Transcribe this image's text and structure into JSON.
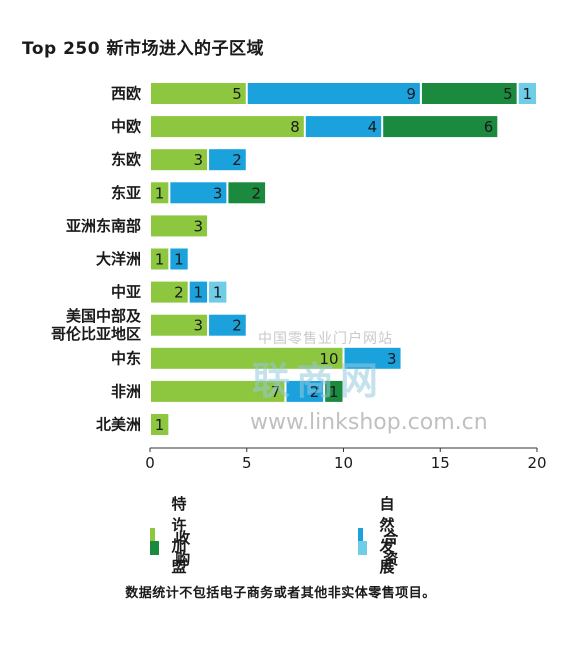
{
  "title": "Top 250  新市场进入的子区域",
  "footnote": "数据统计不包括电子商务或者其他非实体零售项目。",
  "watermark": {
    "site": "中国零售业门户网站",
    "brand": "联商网",
    "url": "www.linkshop.com.cn"
  },
  "colors": {
    "franchise": "#8dc63f",
    "organic": "#1ba2dc",
    "acquisition": "#1b8a3e",
    "jv": "#6fcde8"
  },
  "chart_data": {
    "type": "bar",
    "orientation": "horizontal",
    "stacked": true,
    "title": "Top 250  新市场进入的子区域",
    "categories": [
      "西欧",
      "中欧",
      "东欧",
      "东亚",
      "亚洲东南部",
      "大洋洲",
      "中亚",
      "美国中部及\n哥伦比亚地区",
      "中东",
      "非洲",
      "北美洲"
    ],
    "series": [
      {
        "name": "特许加盟",
        "color": "#8dc63f",
        "values": [
          5,
          8,
          3,
          1,
          3,
          1,
          2,
          3,
          10,
          7,
          1
        ]
      },
      {
        "name": "自然发展",
        "color": "#1ba2dc",
        "values": [
          9,
          4,
          2,
          3,
          0,
          1,
          1,
          2,
          3,
          2,
          0
        ]
      },
      {
        "name": "收购",
        "color": "#1b8a3e",
        "values": [
          5,
          6,
          0,
          2,
          0,
          0,
          0,
          0,
          0,
          1,
          0
        ]
      },
      {
        "name": "合资",
        "color": "#6fcde8",
        "values": [
          1,
          0,
          0,
          0,
          0,
          0,
          1,
          0,
          0,
          0,
          0
        ]
      }
    ],
    "xlim": [
      0,
      20
    ],
    "xticks": [
      "0",
      "5",
      "10",
      "15",
      "20"
    ],
    "grid": false,
    "legend_position": "bottom"
  }
}
